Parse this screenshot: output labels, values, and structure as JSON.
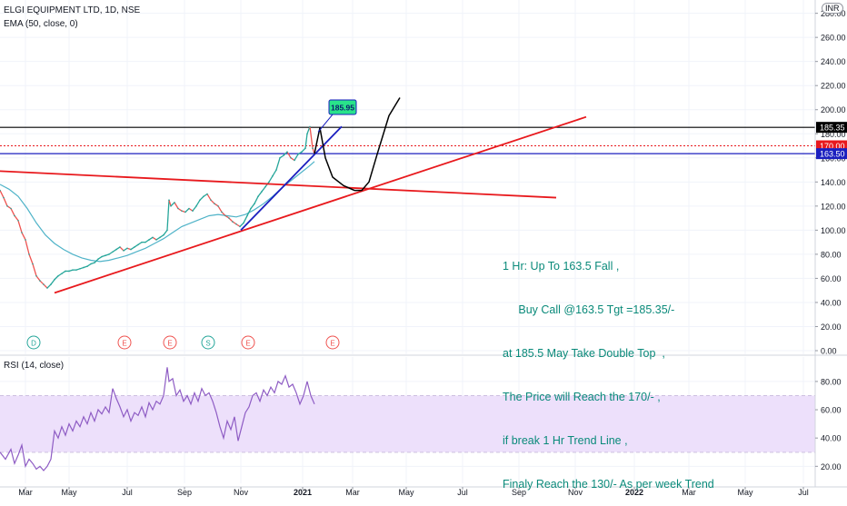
{
  "header": {
    "symbol_line": "ELGI EQUIPMENT LTD, 1D, NSE",
    "indicator_line": "EMA (50, close, 0)",
    "currency": "INR",
    "rsi_label": "RSI (14, close)"
  },
  "annotation": {
    "lines": [
      "1 Hr: Up To 163.5 Fall ,",
      "     Buy Call @163.5 Tgt =185.35/-",
      "at 185.5 May Take Double Top  ,",
      "The Price will Reach the 170/- ,",
      "if break 1 Hr Trend Line ,",
      "Finaly Reach the 130/- As per week Trend"
    ],
    "callout_label": "185.95"
  },
  "colors": {
    "price_line": "#26a69a",
    "price_down": "#ef5350",
    "ema": "#4fb3c8",
    "trend_red": "#e8191d",
    "trend_blue": "#1b1fbf",
    "forecast": "#000000",
    "rsi": "#8e5cc4",
    "rsi_band": "#ede0fb",
    "annotation_text": "#0a8a7a",
    "level_185": "#000000",
    "level_170": "#e8191d",
    "level_163": "#1b1fbf",
    "event_marker": "#ef5350",
    "event_marker_green": "#26a69a"
  },
  "chart_data": [
    {
      "type": "line",
      "title": "ELGI EQUIPMENT LTD, 1D, NSE",
      "x_ticks": [
        "Mar",
        "May",
        "Jul",
        "Sep",
        "Nov",
        "2021",
        "Mar",
        "May",
        "Jul",
        "Sep",
        "Nov",
        "2022",
        "Mar",
        "May",
        "Jul"
      ],
      "y_ticks": [
        "0.00",
        "20.00",
        "40.00",
        "60.00",
        "80.00",
        "100.00",
        "120.00",
        "140.00",
        "160.00",
        "180.00",
        "200.00",
        "220.00",
        "240.00",
        "260.00",
        "280.00"
      ],
      "ylim": [
        0,
        285
      ],
      "grid": true,
      "series": [
        {
          "name": "ELGI EQUIPMENT LTD, 1D, NSE",
          "points": [
            [
              0,
              133
            ],
            [
              4,
              127
            ],
            [
              8,
              120
            ],
            [
              12,
              118
            ],
            [
              16,
              112
            ],
            [
              20,
              108
            ],
            [
              24,
              98
            ],
            [
              28,
              92
            ],
            [
              32,
              80
            ],
            [
              36,
              72
            ],
            [
              40,
              62
            ],
            [
              44,
              58
            ],
            [
              48,
              55
            ],
            [
              52,
              52
            ],
            [
              56,
              55
            ],
            [
              60,
              59
            ],
            [
              64,
              62
            ],
            [
              68,
              64
            ],
            [
              72,
              66
            ],
            [
              76,
              66
            ],
            [
              80,
              67
            ],
            [
              84,
              67
            ],
            [
              88,
              68
            ],
            [
              92,
              69
            ],
            [
              96,
              70
            ],
            [
              100,
              72
            ],
            [
              104,
              73
            ],
            [
              108,
              76
            ],
            [
              112,
              78
            ],
            [
              116,
              79
            ],
            [
              120,
              80
            ],
            [
              124,
              82
            ],
            [
              128,
              84
            ],
            [
              132,
              86
            ],
            [
              136,
              83
            ],
            [
              140,
              85
            ],
            [
              144,
              84
            ],
            [
              148,
              86
            ],
            [
              152,
              88
            ],
            [
              156,
              90
            ],
            [
              160,
              90
            ],
            [
              164,
              92
            ],
            [
              168,
              94
            ],
            [
              172,
              92
            ],
            [
              176,
              94
            ],
            [
              180,
              96
            ],
            [
              184,
              100
            ],
            [
              186,
              125
            ],
            [
              188,
              120
            ],
            [
              192,
              123
            ],
            [
              196,
              118
            ],
            [
              200,
              116
            ],
            [
              204,
              115
            ],
            [
              208,
              118
            ],
            [
              212,
              116
            ],
            [
              216,
              120
            ],
            [
              220,
              125
            ],
            [
              224,
              128
            ],
            [
              228,
              130
            ],
            [
              232,
              125
            ],
            [
              236,
              122
            ],
            [
              240,
              120
            ],
            [
              244,
              115
            ],
            [
              248,
              112
            ],
            [
              252,
              110
            ],
            [
              256,
              107
            ],
            [
              260,
              105
            ],
            [
              264,
              103
            ],
            [
              268,
              106
            ],
            [
              272,
              112
            ],
            [
              276,
              118
            ],
            [
              280,
              122
            ],
            [
              284,
              128
            ],
            [
              288,
              132
            ],
            [
              292,
              136
            ],
            [
              296,
              140
            ],
            [
              300,
              145
            ],
            [
              304,
              150
            ],
            [
              308,
              160
            ],
            [
              312,
              162
            ],
            [
              316,
              165
            ],
            [
              320,
              160
            ],
            [
              324,
              158
            ],
            [
              328,
              163
            ],
            [
              332,
              165
            ],
            [
              336,
              168
            ],
            [
              338,
              180
            ],
            [
              341,
              185.95
            ],
            [
              344,
              168
            ],
            [
              346,
              163.5
            ]
          ]
        },
        {
          "name": "EMA (50, close, 0)",
          "points": [
            [
              0,
              138
            ],
            [
              10,
              134
            ],
            [
              20,
              128
            ],
            [
              30,
              118
            ],
            [
              40,
              106
            ],
            [
              50,
              96
            ],
            [
              60,
              89
            ],
            [
              70,
              84
            ],
            [
              80,
              80
            ],
            [
              90,
              77
            ],
            [
              100,
              75
            ],
            [
              110,
              74
            ],
            [
              120,
              75
            ],
            [
              130,
              77
            ],
            [
              140,
              79
            ],
            [
              150,
              82
            ],
            [
              160,
              85
            ],
            [
              170,
              89
            ],
            [
              180,
              93
            ],
            [
              190,
              98
            ],
            [
              200,
              103
            ],
            [
              210,
              106
            ],
            [
              220,
              109
            ],
            [
              230,
              112
            ],
            [
              240,
              113
            ],
            [
              250,
              112
            ],
            [
              260,
              111
            ],
            [
              270,
              113
            ],
            [
              280,
              117
            ],
            [
              290,
              122
            ],
            [
              300,
              128
            ],
            [
              310,
              135
            ],
            [
              320,
              141
            ],
            [
              330,
              147
            ],
            [
              340,
              153
            ],
            [
              346,
              157
            ]
          ]
        }
      ],
      "levels": [
        {
          "name": "185.35",
          "value": 185.35
        },
        {
          "name": "170.00",
          "value": 170.0
        },
        {
          "name": "163.50",
          "value": 163.5
        }
      ],
      "trend_lines": [
        {
          "points": [
            [
              0,
              149
            ],
            [
              612,
              127
            ]
          ]
        },
        {
          "points": [
            [
              60,
              48
            ],
            [
              645,
              194
            ]
          ]
        },
        {
          "points": [
            [
              265,
              100
            ],
            [
              376,
              186
            ]
          ]
        }
      ],
      "forecast_path": [
        [
          346,
          163.5
        ],
        [
          352,
          185
        ],
        [
          358,
          160
        ],
        [
          366,
          144
        ],
        [
          378,
          137
        ],
        [
          390,
          133
        ],
        [
          398,
          133
        ],
        [
          406,
          140
        ],
        [
          415,
          163
        ],
        [
          428,
          195
        ],
        [
          440,
          210
        ]
      ],
      "event_markers": [
        {
          "letter": "D",
          "x": 37,
          "color_key": "event_marker_green"
        },
        {
          "letter": "E",
          "x": 137,
          "color_key": "event_marker"
        },
        {
          "letter": "E",
          "x": 187,
          "color_key": "event_marker"
        },
        {
          "letter": "S",
          "x": 229,
          "color_key": "event_marker_green"
        },
        {
          "letter": "E",
          "x": 273,
          "color_key": "event_marker"
        },
        {
          "letter": "E",
          "x": 366,
          "color_key": "event_marker"
        }
      ]
    },
    {
      "type": "line",
      "title": "RSI (14, close)",
      "y_ticks": [
        "20.00",
        "40.00",
        "60.00",
        "80.00"
      ],
      "ylim": [
        8,
        96
      ],
      "band": [
        30,
        70
      ],
      "grid": true,
      "series": [
        {
          "name": "RSI (14, close)",
          "points": [
            [
              0,
              30
            ],
            [
              6,
              25
            ],
            [
              12,
              32
            ],
            [
              16,
              22
            ],
            [
              20,
              28
            ],
            [
              24,
              35
            ],
            [
              28,
              20
            ],
            [
              32,
              25
            ],
            [
              36,
              22
            ],
            [
              40,
              18
            ],
            [
              44,
              20
            ],
            [
              48,
              17
            ],
            [
              52,
              20
            ],
            [
              56,
              25
            ],
            [
              60,
              45
            ],
            [
              64,
              40
            ],
            [
              68,
              48
            ],
            [
              72,
              42
            ],
            [
              76,
              50
            ],
            [
              80,
              45
            ],
            [
              84,
              52
            ],
            [
              88,
              48
            ],
            [
              92,
              55
            ],
            [
              96,
              50
            ],
            [
              100,
              58
            ],
            [
              104,
              52
            ],
            [
              108,
              60
            ],
            [
              112,
              57
            ],
            [
              116,
              62
            ],
            [
              120,
              58
            ],
            [
              124,
              75
            ],
            [
              128,
              68
            ],
            [
              132,
              62
            ],
            [
              136,
              55
            ],
            [
              140,
              60
            ],
            [
              144,
              52
            ],
            [
              148,
              58
            ],
            [
              152,
              56
            ],
            [
              156,
              62
            ],
            [
              160,
              55
            ],
            [
              164,
              65
            ],
            [
              168,
              60
            ],
            [
              172,
              66
            ],
            [
              176,
              64
            ],
            [
              180,
              70
            ],
            [
              184,
              90
            ],
            [
              186,
              80
            ],
            [
              190,
              82
            ],
            [
              194,
              70
            ],
            [
              198,
              74
            ],
            [
              202,
              66
            ],
            [
              206,
              70
            ],
            [
              210,
              64
            ],
            [
              214,
              72
            ],
            [
              218,
              66
            ],
            [
              222,
              75
            ],
            [
              226,
              70
            ],
            [
              230,
              72
            ],
            [
              234,
              66
            ],
            [
              238,
              58
            ],
            [
              242,
              48
            ],
            [
              246,
              40
            ],
            [
              250,
              52
            ],
            [
              254,
              46
            ],
            [
              258,
              55
            ],
            [
              262,
              38
            ],
            [
              266,
              48
            ],
            [
              270,
              58
            ],
            [
              274,
              62
            ],
            [
              278,
              70
            ],
            [
              282,
              72
            ],
            [
              286,
              66
            ],
            [
              290,
              74
            ],
            [
              294,
              70
            ],
            [
              298,
              76
            ],
            [
              302,
              72
            ],
            [
              306,
              80
            ],
            [
              310,
              78
            ],
            [
              314,
              84
            ],
            [
              318,
              76
            ],
            [
              322,
              78
            ],
            [
              326,
              72
            ],
            [
              330,
              64
            ],
            [
              334,
              70
            ],
            [
              338,
              80
            ],
            [
              342,
              70
            ],
            [
              346,
              64
            ]
          ]
        }
      ]
    }
  ]
}
